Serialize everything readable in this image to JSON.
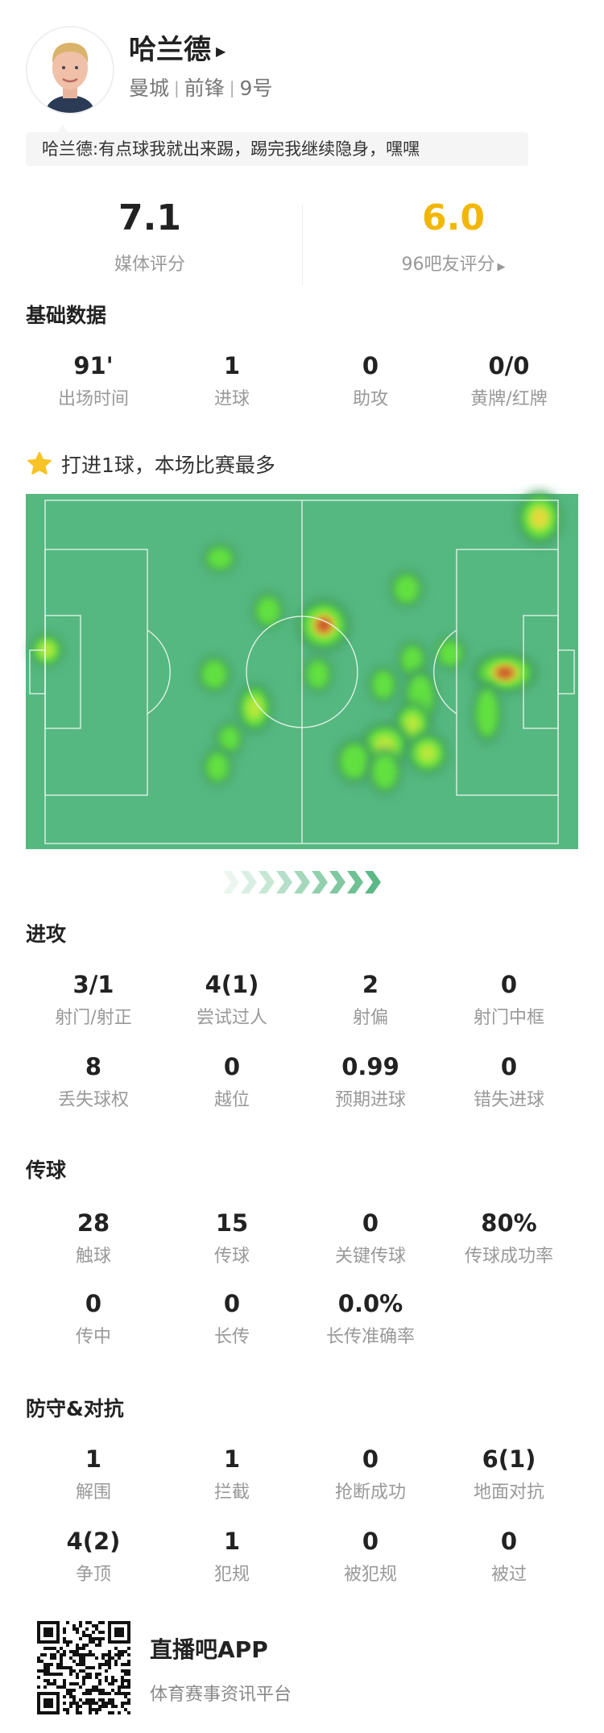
{
  "player": {
    "name": "哈兰德",
    "team": "曼城",
    "position": "前锋",
    "number": "9号",
    "quote": "哈兰德:有点球我就出来踢，踢完我继续隐身，嘿嘿"
  },
  "ratings": {
    "media_score": "7.1",
    "media_label": "媒体评分",
    "fan_score": "6.0",
    "fan_label": "96吧友评分",
    "fan_color": "#f2b705"
  },
  "basic": {
    "title": "基础数据",
    "stats": [
      {
        "value": "91'",
        "label": "出场时间"
      },
      {
        "value": "1",
        "label": "进球"
      },
      {
        "value": "0",
        "label": "助攻"
      },
      {
        "value": "0/0",
        "label": "黄牌/红牌"
      }
    ]
  },
  "highlight": {
    "icon": "star-icon",
    "text": "打进1球，本场比赛最多"
  },
  "heatmap": {
    "pitch_color": "#55b880"
  },
  "attack": {
    "title": "进攻",
    "stats": [
      {
        "value": "3/1",
        "label": "射门/射正"
      },
      {
        "value": "4(1)",
        "label": "尝试过人"
      },
      {
        "value": "2",
        "label": "射偏"
      },
      {
        "value": "0",
        "label": "射门中框"
      },
      {
        "value": "8",
        "label": "丢失球权"
      },
      {
        "value": "0",
        "label": "越位"
      },
      {
        "value": "0.99",
        "label": "预期进球"
      },
      {
        "value": "0",
        "label": "错失进球"
      }
    ]
  },
  "passing": {
    "title": "传球",
    "stats": [
      {
        "value": "28",
        "label": "触球"
      },
      {
        "value": "15",
        "label": "传球"
      },
      {
        "value": "0",
        "label": "关键传球"
      },
      {
        "value": "80%",
        "label": "传球成功率"
      },
      {
        "value": "0",
        "label": "传中"
      },
      {
        "value": "0",
        "label": "长传"
      },
      {
        "value": "0.0%",
        "label": "长传准确率"
      }
    ]
  },
  "defense": {
    "title": "防守&对抗",
    "stats": [
      {
        "value": "1",
        "label": "解围"
      },
      {
        "value": "1",
        "label": "拦截"
      },
      {
        "value": "0",
        "label": "抢断成功"
      },
      {
        "value": "6(1)",
        "label": "地面对抗"
      },
      {
        "value": "4(2)",
        "label": "争顶"
      },
      {
        "value": "1",
        "label": "犯规"
      },
      {
        "value": "0",
        "label": "被犯规"
      },
      {
        "value": "0",
        "label": "被过"
      }
    ]
  },
  "footer": {
    "app_name": "直播吧APP",
    "tagline": "体育赛事资讯平台"
  }
}
